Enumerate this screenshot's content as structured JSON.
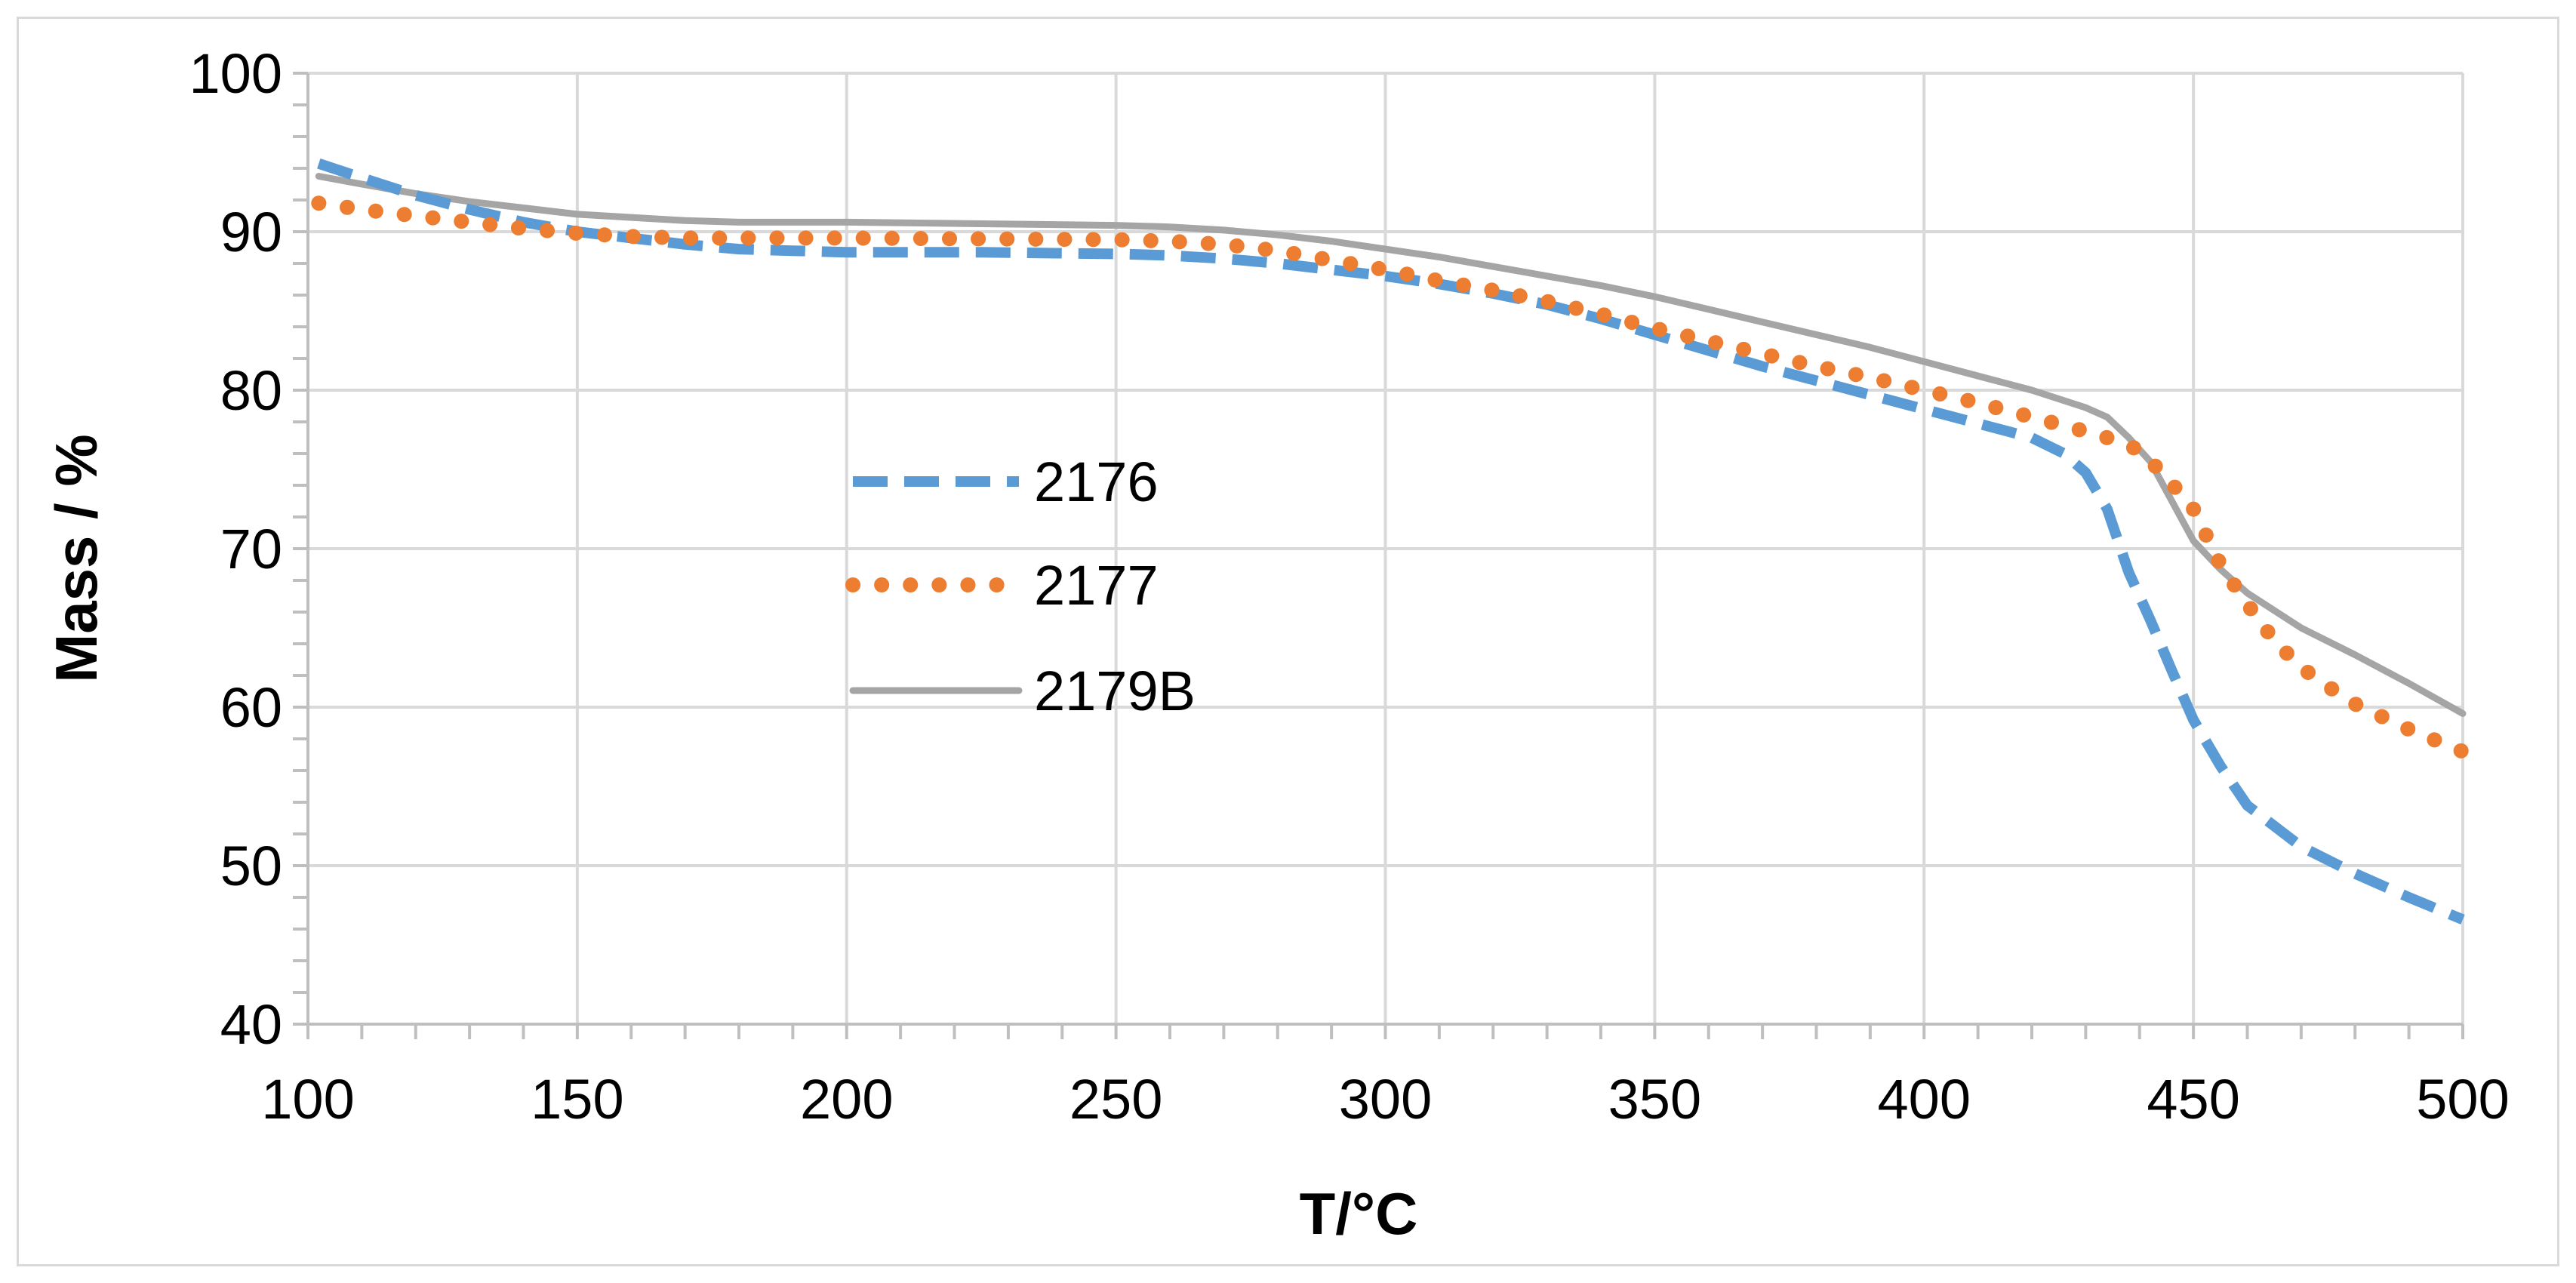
{
  "chart_data": {
    "type": "line",
    "title": "",
    "xlabel": "T/°C",
    "ylabel": "Mass / %",
    "xlim": [
      100,
      500
    ],
    "ylim": [
      40,
      100
    ],
    "x_ticks": [
      100,
      150,
      200,
      250,
      300,
      350,
      400,
      450,
      500
    ],
    "y_ticks": [
      40,
      50,
      60,
      70,
      80,
      90,
      100
    ],
    "x_tick_labels": [
      "100",
      "150",
      "200",
      "250",
      "300",
      "350",
      "400",
      "450",
      "500"
    ],
    "y_tick_labels": [
      "40",
      "50",
      "60",
      "70",
      "80",
      "90",
      "100"
    ],
    "grid": true,
    "legend_position": "center-left",
    "series": [
      {
        "name": "2176",
        "color": "#5b9bd5",
        "style": "dashed",
        "points": [
          [
            102,
            94.3
          ],
          [
            110,
            93.4
          ],
          [
            120,
            92.3
          ],
          [
            130,
            91.4
          ],
          [
            140,
            90.6
          ],
          [
            150,
            90.0
          ],
          [
            160,
            89.6
          ],
          [
            170,
            89.2
          ],
          [
            180,
            88.9
          ],
          [
            190,
            88.8
          ],
          [
            200,
            88.7
          ],
          [
            225,
            88.7
          ],
          [
            250,
            88.6
          ],
          [
            260,
            88.5
          ],
          [
            270,
            88.3
          ],
          [
            280,
            88.0
          ],
          [
            290,
            87.6
          ],
          [
            300,
            87.2
          ],
          [
            310,
            86.7
          ],
          [
            320,
            86.1
          ],
          [
            330,
            85.4
          ],
          [
            340,
            84.5
          ],
          [
            350,
            83.5
          ],
          [
            360,
            82.5
          ],
          [
            370,
            81.5
          ],
          [
            380,
            80.6
          ],
          [
            390,
            79.7
          ],
          [
            400,
            78.8
          ],
          [
            410,
            77.9
          ],
          [
            420,
            77.0
          ],
          [
            426,
            76.0
          ],
          [
            430,
            74.8
          ],
          [
            434,
            72.5
          ],
          [
            438,
            68.5
          ],
          [
            442,
            65.5
          ],
          [
            446,
            62.3
          ],
          [
            450,
            59.2
          ],
          [
            455,
            56.3
          ],
          [
            460,
            53.8
          ],
          [
            470,
            51.2
          ],
          [
            480,
            49.5
          ],
          [
            490,
            48.0
          ],
          [
            500,
            46.6
          ]
        ]
      },
      {
        "name": "2177",
        "color": "#ed7d31",
        "style": "dotted",
        "points": [
          [
            102,
            91.8
          ],
          [
            110,
            91.4
          ],
          [
            120,
            91.0
          ],
          [
            130,
            90.6
          ],
          [
            140,
            90.2
          ],
          [
            150,
            89.9
          ],
          [
            160,
            89.7
          ],
          [
            170,
            89.6
          ],
          [
            180,
            89.6
          ],
          [
            200,
            89.6
          ],
          [
            250,
            89.5
          ],
          [
            260,
            89.4
          ],
          [
            270,
            89.2
          ],
          [
            280,
            88.8
          ],
          [
            290,
            88.2
          ],
          [
            300,
            87.6
          ],
          [
            310,
            86.9
          ],
          [
            320,
            86.3
          ],
          [
            330,
            85.6
          ],
          [
            340,
            84.8
          ],
          [
            350,
            83.9
          ],
          [
            360,
            83.1
          ],
          [
            370,
            82.3
          ],
          [
            380,
            81.5
          ],
          [
            390,
            80.8
          ],
          [
            400,
            80.0
          ],
          [
            410,
            79.2
          ],
          [
            420,
            78.3
          ],
          [
            430,
            77.4
          ],
          [
            436,
            76.8
          ],
          [
            440,
            76.2
          ],
          [
            445,
            74.5
          ],
          [
            450,
            72.5
          ],
          [
            455,
            69.0
          ],
          [
            460,
            66.5
          ],
          [
            465,
            64.2
          ],
          [
            470,
            62.5
          ],
          [
            475,
            61.3
          ],
          [
            480,
            60.2
          ],
          [
            490,
            58.6
          ],
          [
            500,
            57.2
          ]
        ]
      },
      {
        "name": "2179B",
        "color": "#a5a5a5",
        "style": "solid",
        "points": [
          [
            102,
            93.5
          ],
          [
            110,
            93.0
          ],
          [
            120,
            92.4
          ],
          [
            130,
            91.9
          ],
          [
            140,
            91.5
          ],
          [
            150,
            91.1
          ],
          [
            160,
            90.9
          ],
          [
            170,
            90.7
          ],
          [
            180,
            90.6
          ],
          [
            200,
            90.6
          ],
          [
            250,
            90.4
          ],
          [
            260,
            90.3
          ],
          [
            270,
            90.1
          ],
          [
            280,
            89.8
          ],
          [
            290,
            89.4
          ],
          [
            300,
            88.9
          ],
          [
            310,
            88.4
          ],
          [
            320,
            87.8
          ],
          [
            330,
            87.2
          ],
          [
            340,
            86.6
          ],
          [
            350,
            85.9
          ],
          [
            360,
            85.1
          ],
          [
            370,
            84.3
          ],
          [
            380,
            83.5
          ],
          [
            390,
            82.7
          ],
          [
            400,
            81.8
          ],
          [
            410,
            80.9
          ],
          [
            420,
            80.0
          ],
          [
            430,
            78.9
          ],
          [
            434,
            78.3
          ],
          [
            438,
            77.0
          ],
          [
            442,
            75.5
          ],
          [
            446,
            73.0
          ],
          [
            450,
            70.5
          ],
          [
            455,
            68.7
          ],
          [
            460,
            67.2
          ],
          [
            470,
            65.0
          ],
          [
            480,
            63.3
          ],
          [
            490,
            61.5
          ],
          [
            500,
            59.6
          ]
        ]
      }
    ]
  }
}
